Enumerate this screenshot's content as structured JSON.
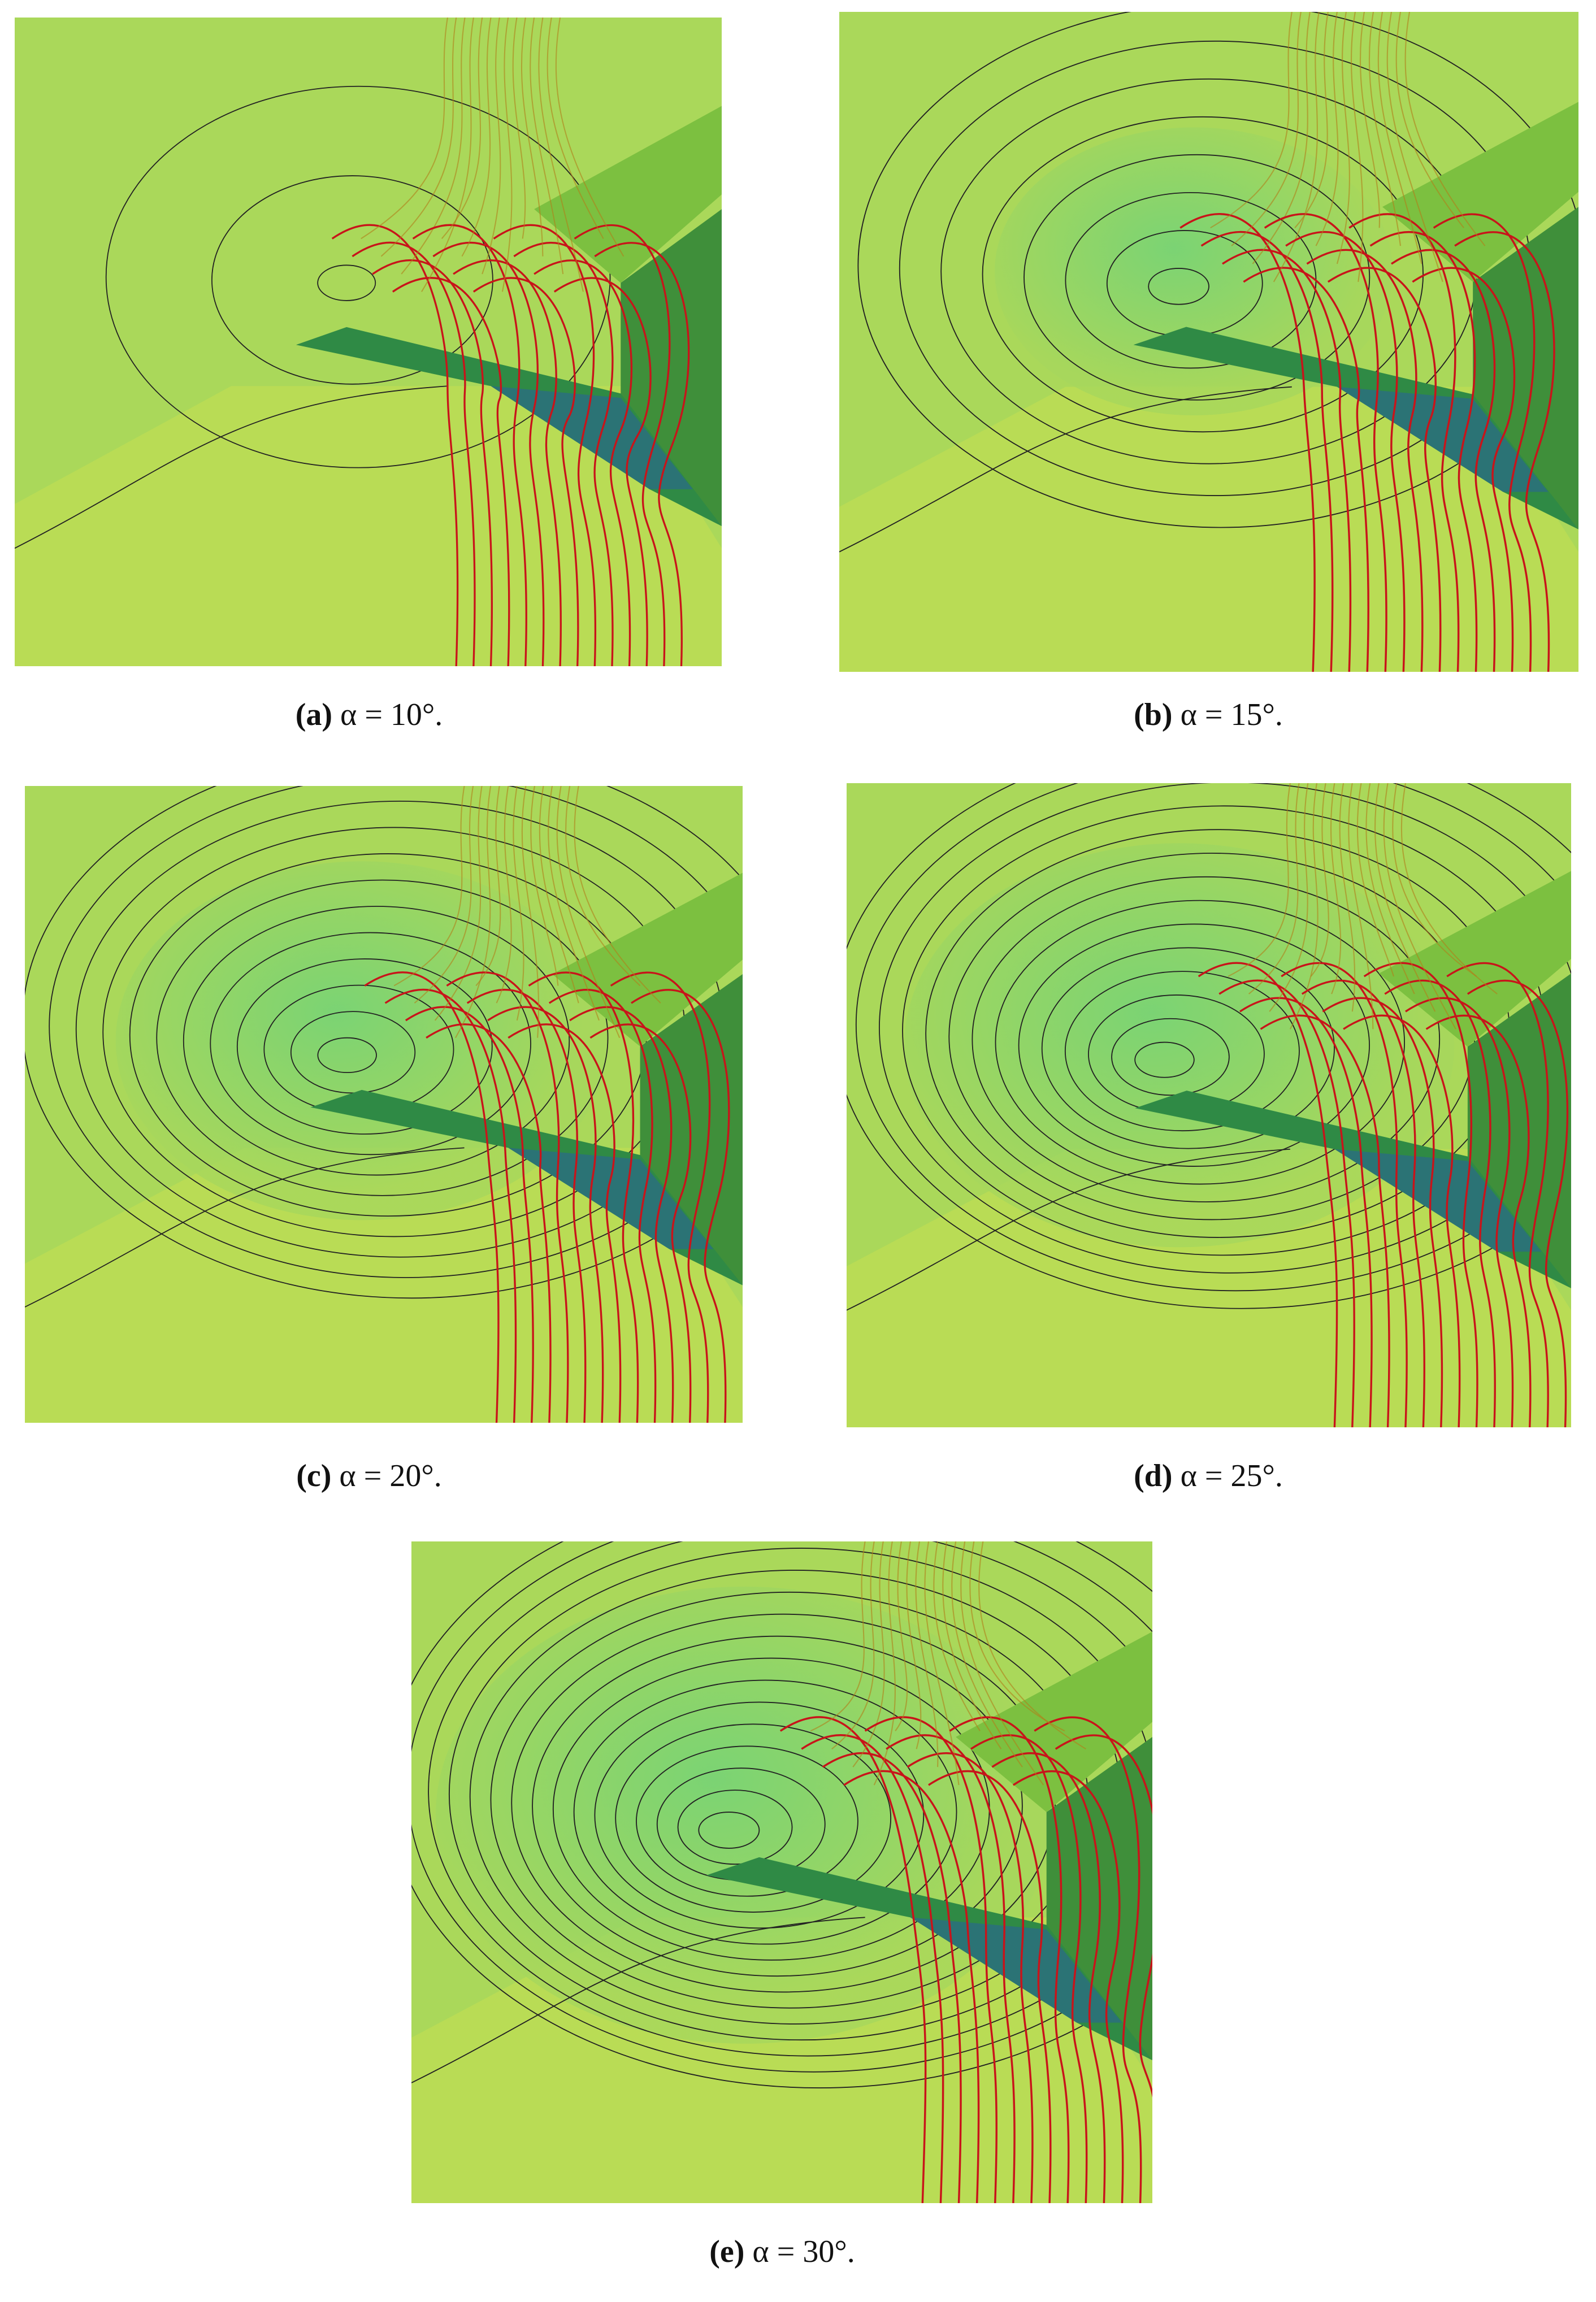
{
  "figure": {
    "panels": [
      {
        "label": "(a)",
        "caption": "α = 10°."
      },
      {
        "label": "(b)",
        "caption": "α = 15°."
      },
      {
        "label": "(c)",
        "caption": "α = 20°."
      },
      {
        "label": "(d)",
        "caption": "α = 25°."
      },
      {
        "label": "(e)",
        "caption": "α = 30°."
      }
    ]
  }
}
